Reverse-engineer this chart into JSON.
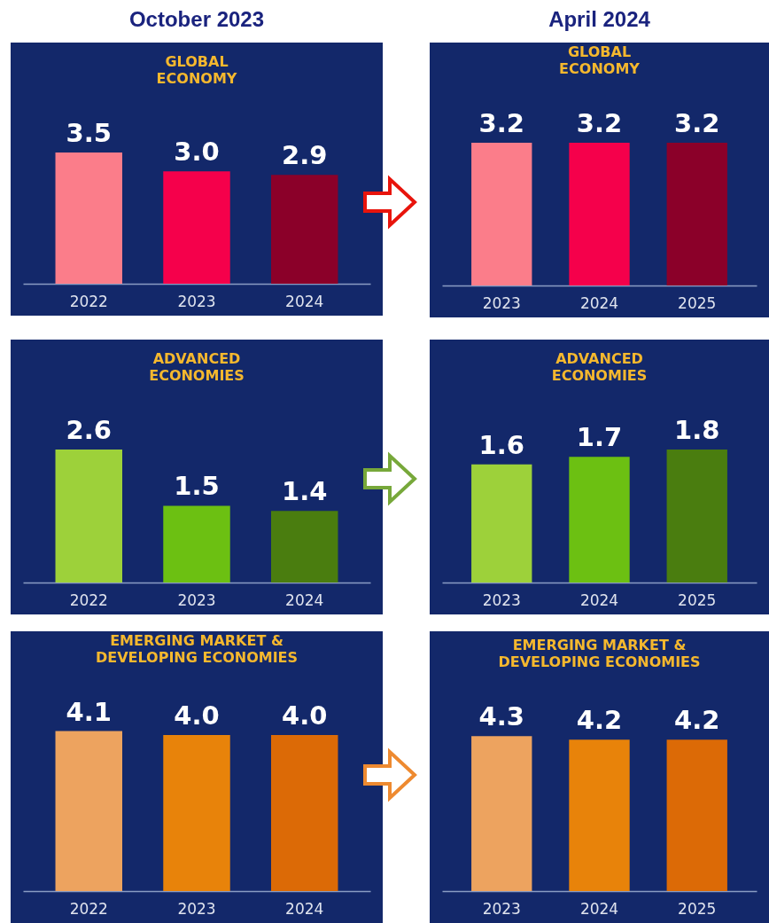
{
  "chart_data": [
    {
      "type": "bar",
      "subtitle": "October 2023",
      "title": "GLOBAL ECONOMY",
      "categories": [
        "2022",
        "2023",
        "2024"
      ],
      "values": [
        3.5,
        3.0,
        2.9
      ],
      "colors": [
        "#fb7d8a",
        "#f5004b",
        "#8b0029"
      ],
      "value_labels": [
        "3.5",
        "3.0",
        "2.9"
      ]
    },
    {
      "type": "bar",
      "subtitle": "April 2024",
      "title": "GLOBAL ECONOMY",
      "categories": [
        "2023",
        "2024",
        "2025"
      ],
      "values": [
        3.2,
        3.2,
        3.2
      ],
      "colors": [
        "#fb7d8a",
        "#f5004b",
        "#8b0029"
      ],
      "value_labels": [
        "3.2",
        "3.2",
        "3.2"
      ]
    },
    {
      "type": "bar",
      "title": "ADVANCED ECONOMIES",
      "categories": [
        "2022",
        "2023",
        "2024"
      ],
      "values": [
        2.6,
        1.5,
        1.4
      ],
      "colors": [
        "#9dd13a",
        "#6cc012",
        "#4a7d0f"
      ],
      "value_labels": [
        "2.6",
        "1.5",
        "1.4"
      ]
    },
    {
      "type": "bar",
      "title": "ADVANCED ECONOMIES",
      "categories": [
        "2023",
        "2024",
        "2025"
      ],
      "values": [
        1.6,
        1.7,
        1.8
      ],
      "colors": [
        "#9dd13a",
        "#6cc012",
        "#4a7d0f"
      ],
      "value_labels": [
        "1.6",
        "1.7",
        "1.8"
      ]
    },
    {
      "type": "bar",
      "title": "EMERGING MARKET & DEVELOPING ECONOMIES",
      "categories": [
        "2022",
        "2023",
        "2024"
      ],
      "values": [
        4.1,
        4.0,
        4.0
      ],
      "colors": [
        "#eda35f",
        "#e8830a",
        "#dc6a06"
      ],
      "value_labels": [
        "4.1",
        "4.0",
        "4.0"
      ]
    },
    {
      "type": "bar",
      "title": "EMERGING MARKET & DEVELOPING ECONOMIES",
      "categories": [
        "2023",
        "2024",
        "2025"
      ],
      "values": [
        4.3,
        4.2,
        4.2
      ],
      "colors": [
        "#eda35f",
        "#e8830a",
        "#dc6a06"
      ],
      "value_labels": [
        "4.3",
        "4.2",
        "4.2"
      ]
    }
  ]
}
